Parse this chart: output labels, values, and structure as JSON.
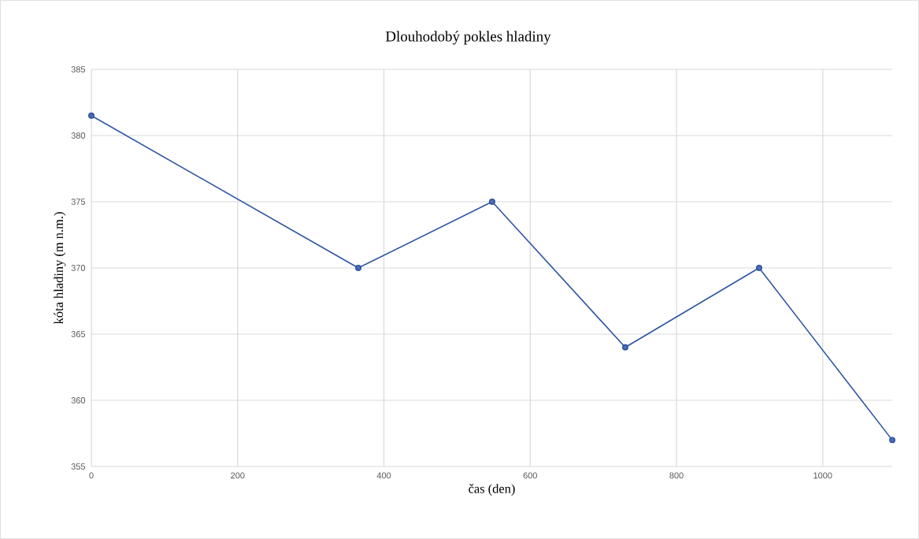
{
  "chart_data": {
    "type": "line",
    "title": "Dlouhodobý pokles hladiny",
    "xlabel": "čas (den)",
    "ylabel": "kóta hladiny (m n.m.)",
    "x": [
      0,
      365,
      548,
      730,
      913,
      1095
    ],
    "series": [
      {
        "color": "#2f55a4",
        "values": [
          381.5,
          370,
          375,
          364,
          370,
          357
        ]
      }
    ],
    "xlim": [
      0,
      1095
    ],
    "xticks": [
      0,
      200,
      400,
      600,
      800,
      1000
    ],
    "ylim": [
      355,
      385
    ],
    "yticks": [
      355,
      360,
      365,
      370,
      375,
      380,
      385
    ],
    "grid": true,
    "marker": "circle",
    "line_style": "solid"
  }
}
